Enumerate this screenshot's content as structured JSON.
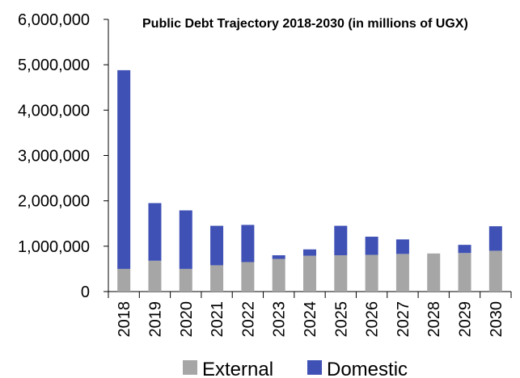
{
  "chart_data": {
    "type": "bar",
    "stacked": true,
    "title": "Public Debt Trajectory 2018-2030  (in millions of UGX)",
    "xlabel": "",
    "ylabel": "",
    "ylim": [
      0,
      6000000
    ],
    "yticks": [
      "0",
      "1,000,000",
      "2,000,000",
      "3,000,000",
      "4,000,000",
      "5,000,000",
      "6,000,000"
    ],
    "ytick_values": [
      0,
      1000000,
      2000000,
      3000000,
      4000000,
      5000000,
      6000000
    ],
    "categories": [
      "2018",
      "2019",
      "2020",
      "2021",
      "2022",
      "2023",
      "2024",
      "2025",
      "2026",
      "2027",
      "2028",
      "2029",
      "2030"
    ],
    "series": [
      {
        "name": "External",
        "color": "#a6a6a6",
        "values": [
          500000,
          680000,
          500000,
          580000,
          650000,
          720000,
          790000,
          800000,
          810000,
          830000,
          840000,
          850000,
          900000
        ]
      },
      {
        "name": "Domestic",
        "color": "#3f51b5",
        "values": [
          4380000,
          1270000,
          1290000,
          870000,
          820000,
          80000,
          140000,
          650000,
          400000,
          320000,
          0,
          180000,
          540000
        ]
      }
    ],
    "grid": false,
    "legend_position": "bottom"
  }
}
